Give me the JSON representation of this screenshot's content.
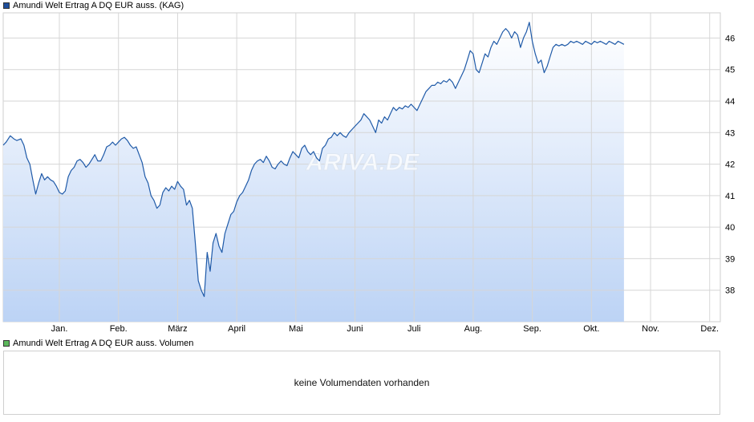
{
  "legend": {
    "price_label": "Amundi Welt Ertrag A DQ EUR auss. (KAG)",
    "price_color": "#1f4e9c",
    "volume_label": "Amundi Welt Ertrag A DQ EUR auss. Volumen",
    "volume_color": "#5cb85c"
  },
  "volume": {
    "message": "keine Volumendaten vorhanden"
  },
  "watermark": "ARIVA.DE",
  "chart_data": {
    "type": "area",
    "title": "",
    "xlabel": "",
    "ylabel": "",
    "ylim": [
      37.0,
      46.8
    ],
    "yticks": [
      38,
      39,
      40,
      41,
      42,
      43,
      44,
      45,
      46
    ],
    "xticks": [
      "Jan.",
      "Feb.",
      "März",
      "April",
      "Mai",
      "Juni",
      "Juli",
      "Aug.",
      "Sep.",
      "Okt.",
      "Nov.",
      "Dez."
    ],
    "xtick_pos": [
      0.5,
      1.5,
      2.5,
      3.5,
      4.5,
      5.5,
      6.5,
      7.5,
      8.5,
      9.5,
      10.5,
      11.5
    ],
    "xlim": [
      -0.45,
      11.68
    ],
    "y_grid": true,
    "x_grid": true,
    "line_color": "#1f5aa8",
    "fill_top_color": "#ffffff",
    "fill_bottom_color": "#bcd3f5",
    "series": [
      {
        "values": [
          [
            -0.45,
            42.6
          ],
          [
            -0.4,
            42.7
          ],
          [
            -0.33,
            42.9
          ],
          [
            -0.27,
            42.8
          ],
          [
            -0.22,
            42.75
          ],
          [
            -0.15,
            42.8
          ],
          [
            -0.1,
            42.6
          ],
          [
            -0.05,
            42.2
          ],
          [
            0.0,
            42.0
          ],
          [
            0.05,
            41.5
          ],
          [
            0.1,
            41.05
          ],
          [
            0.15,
            41.4
          ],
          [
            0.2,
            41.7
          ],
          [
            0.25,
            41.5
          ],
          [
            0.3,
            41.6
          ],
          [
            0.35,
            41.5
          ],
          [
            0.4,
            41.45
          ],
          [
            0.45,
            41.3
          ],
          [
            0.5,
            41.1
          ],
          [
            0.55,
            41.05
          ],
          [
            0.6,
            41.15
          ],
          [
            0.65,
            41.6
          ],
          [
            0.7,
            41.8
          ],
          [
            0.75,
            41.9
          ],
          [
            0.8,
            42.1
          ],
          [
            0.85,
            42.15
          ],
          [
            0.9,
            42.05
          ],
          [
            0.95,
            41.9
          ],
          [
            1.0,
            42.0
          ],
          [
            1.05,
            42.15
          ],
          [
            1.1,
            42.3
          ],
          [
            1.15,
            42.1
          ],
          [
            1.2,
            42.1
          ],
          [
            1.25,
            42.3
          ],
          [
            1.3,
            42.55
          ],
          [
            1.35,
            42.6
          ],
          [
            1.4,
            42.7
          ],
          [
            1.45,
            42.6
          ],
          [
            1.5,
            42.7
          ],
          [
            1.55,
            42.8
          ],
          [
            1.6,
            42.85
          ],
          [
            1.65,
            42.75
          ],
          [
            1.7,
            42.6
          ],
          [
            1.75,
            42.5
          ],
          [
            1.8,
            42.55
          ],
          [
            1.85,
            42.3
          ],
          [
            1.9,
            42.05
          ],
          [
            1.95,
            41.6
          ],
          [
            2.0,
            41.4
          ],
          [
            2.05,
            41.0
          ],
          [
            2.1,
            40.85
          ],
          [
            2.15,
            40.6
          ],
          [
            2.2,
            40.7
          ],
          [
            2.25,
            41.1
          ],
          [
            2.3,
            41.25
          ],
          [
            2.35,
            41.15
          ],
          [
            2.4,
            41.3
          ],
          [
            2.45,
            41.2
          ],
          [
            2.5,
            41.45
          ],
          [
            2.55,
            41.3
          ],
          [
            2.6,
            41.2
          ],
          [
            2.65,
            40.7
          ],
          [
            2.7,
            40.85
          ],
          [
            2.75,
            40.6
          ],
          [
            2.8,
            39.5
          ],
          [
            2.85,
            38.3
          ],
          [
            2.9,
            38.0
          ],
          [
            2.95,
            37.8
          ],
          [
            3.0,
            39.2
          ],
          [
            3.05,
            38.6
          ],
          [
            3.1,
            39.5
          ],
          [
            3.15,
            39.8
          ],
          [
            3.2,
            39.4
          ],
          [
            3.25,
            39.2
          ],
          [
            3.3,
            39.8
          ],
          [
            3.35,
            40.1
          ],
          [
            3.4,
            40.4
          ],
          [
            3.45,
            40.5
          ],
          [
            3.5,
            40.8
          ],
          [
            3.55,
            41.0
          ],
          [
            3.6,
            41.1
          ],
          [
            3.65,
            41.3
          ],
          [
            3.7,
            41.5
          ],
          [
            3.75,
            41.8
          ],
          [
            3.8,
            42.0
          ],
          [
            3.85,
            42.1
          ],
          [
            3.9,
            42.15
          ],
          [
            3.95,
            42.05
          ],
          [
            4.0,
            42.25
          ],
          [
            4.05,
            42.1
          ],
          [
            4.1,
            41.9
          ],
          [
            4.15,
            41.85
          ],
          [
            4.2,
            42.0
          ],
          [
            4.25,
            42.1
          ],
          [
            4.3,
            42.0
          ],
          [
            4.35,
            41.95
          ],
          [
            4.4,
            42.2
          ],
          [
            4.45,
            42.4
          ],
          [
            4.5,
            42.3
          ],
          [
            4.55,
            42.2
          ],
          [
            4.6,
            42.5
          ],
          [
            4.65,
            42.6
          ],
          [
            4.7,
            42.4
          ],
          [
            4.75,
            42.3
          ],
          [
            4.8,
            42.4
          ],
          [
            4.85,
            42.2
          ],
          [
            4.9,
            42.1
          ],
          [
            4.95,
            42.5
          ],
          [
            5.0,
            42.6
          ],
          [
            5.05,
            42.8
          ],
          [
            5.1,
            42.85
          ],
          [
            5.15,
            43.0
          ],
          [
            5.2,
            42.9
          ],
          [
            5.25,
            43.0
          ],
          [
            5.3,
            42.9
          ],
          [
            5.35,
            42.85
          ],
          [
            5.4,
            43.0
          ],
          [
            5.45,
            43.1
          ],
          [
            5.5,
            43.2
          ],
          [
            5.55,
            43.3
          ],
          [
            5.6,
            43.4
          ],
          [
            5.65,
            43.6
          ],
          [
            5.7,
            43.5
          ],
          [
            5.75,
            43.4
          ],
          [
            5.8,
            43.2
          ],
          [
            5.85,
            43.0
          ],
          [
            5.9,
            43.4
          ],
          [
            5.95,
            43.3
          ],
          [
            6.0,
            43.5
          ],
          [
            6.05,
            43.4
          ],
          [
            6.1,
            43.6
          ],
          [
            6.15,
            43.8
          ],
          [
            6.2,
            43.7
          ],
          [
            6.25,
            43.8
          ],
          [
            6.3,
            43.75
          ],
          [
            6.35,
            43.85
          ],
          [
            6.4,
            43.8
          ],
          [
            6.45,
            43.9
          ],
          [
            6.5,
            43.8
          ],
          [
            6.55,
            43.7
          ],
          [
            6.6,
            43.9
          ],
          [
            6.65,
            44.1
          ],
          [
            6.7,
            44.3
          ],
          [
            6.75,
            44.4
          ],
          [
            6.8,
            44.5
          ],
          [
            6.85,
            44.5
          ],
          [
            6.9,
            44.6
          ],
          [
            6.95,
            44.55
          ],
          [
            7.0,
            44.65
          ],
          [
            7.05,
            44.6
          ],
          [
            7.1,
            44.7
          ],
          [
            7.15,
            44.6
          ],
          [
            7.2,
            44.4
          ],
          [
            7.25,
            44.6
          ],
          [
            7.3,
            44.8
          ],
          [
            7.35,
            45.0
          ],
          [
            7.4,
            45.3
          ],
          [
            7.45,
            45.6
          ],
          [
            7.5,
            45.5
          ],
          [
            7.55,
            45.0
          ],
          [
            7.6,
            44.9
          ],
          [
            7.65,
            45.2
          ],
          [
            7.7,
            45.5
          ],
          [
            7.75,
            45.4
          ],
          [
            7.8,
            45.7
          ],
          [
            7.85,
            45.9
          ],
          [
            7.9,
            45.8
          ],
          [
            7.95,
            46.0
          ],
          [
            8.0,
            46.2
          ],
          [
            8.05,
            46.3
          ],
          [
            8.1,
            46.2
          ],
          [
            8.15,
            46.0
          ],
          [
            8.2,
            46.2
          ],
          [
            8.25,
            46.1
          ],
          [
            8.3,
            45.7
          ],
          [
            8.35,
            46.0
          ],
          [
            8.4,
            46.2
          ],
          [
            8.45,
            46.5
          ],
          [
            8.5,
            45.9
          ],
          [
            8.55,
            45.5
          ],
          [
            8.6,
            45.2
          ],
          [
            8.65,
            45.3
          ],
          [
            8.7,
            44.9
          ],
          [
            8.75,
            45.1
          ],
          [
            8.8,
            45.4
          ],
          [
            8.85,
            45.7
          ],
          [
            8.9,
            45.8
          ],
          [
            8.95,
            45.75
          ],
          [
            9.0,
            45.8
          ],
          [
            9.05,
            45.75
          ],
          [
            9.1,
            45.8
          ],
          [
            9.15,
            45.9
          ],
          [
            9.2,
            45.85
          ],
          [
            9.25,
            45.9
          ],
          [
            9.3,
            45.85
          ],
          [
            9.35,
            45.8
          ],
          [
            9.4,
            45.9
          ],
          [
            9.45,
            45.85
          ],
          [
            9.5,
            45.8
          ],
          [
            9.55,
            45.9
          ],
          [
            9.6,
            45.85
          ],
          [
            9.65,
            45.9
          ],
          [
            9.7,
            45.85
          ],
          [
            9.75,
            45.8
          ],
          [
            9.8,
            45.9
          ],
          [
            9.85,
            45.85
          ],
          [
            9.9,
            45.8
          ],
          [
            9.95,
            45.9
          ],
          [
            10.0,
            45.85
          ],
          [
            10.05,
            45.8
          ]
        ]
      }
    ]
  }
}
